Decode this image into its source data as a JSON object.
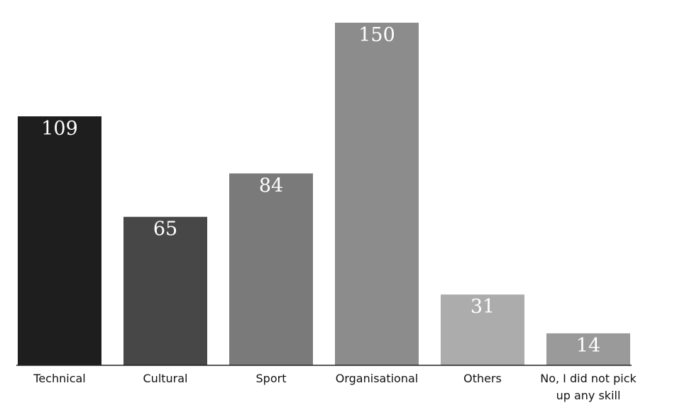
{
  "chart_data": {
    "type": "bar",
    "categories": [
      [
        "Technical"
      ],
      [
        "Cultural"
      ],
      [
        "Sport"
      ],
      [
        "Organisational"
      ],
      [
        "Others"
      ],
      [
        "No, I did not pick",
        "up any skill"
      ]
    ],
    "values": [
      109,
      65,
      84,
      150,
      31,
      14
    ],
    "colors": [
      "#1e1e1e",
      "#474747",
      "#7a7a7a",
      "#8c8c8c",
      "#acacac",
      "#9a9a9a"
    ],
    "title": "",
    "xlabel": "",
    "ylabel": "",
    "ylim": [
      0,
      150
    ],
    "grid": false,
    "legend": "none"
  }
}
